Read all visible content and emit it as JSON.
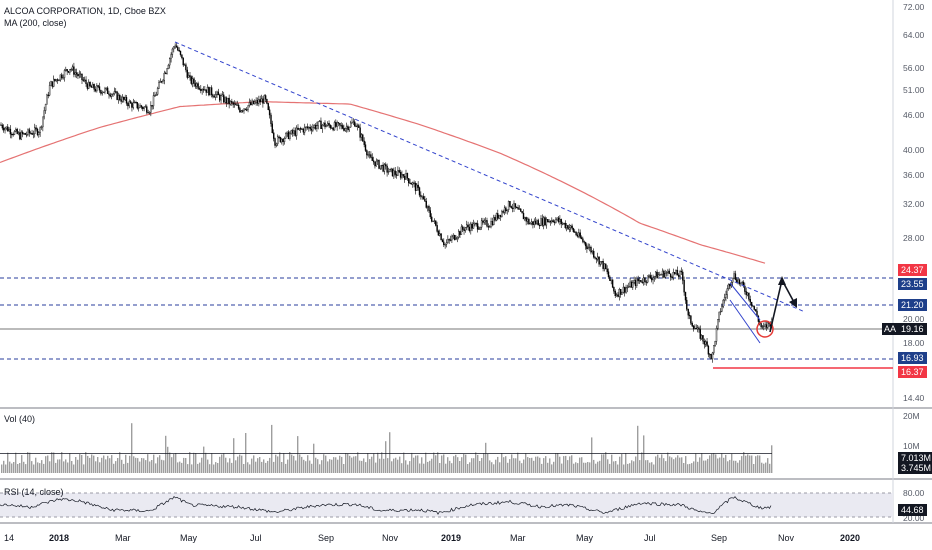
{
  "header": {
    "title": "ALCOA CORPORATION, 1D, Cboe BZX",
    "ma_label": "MA (200, close)"
  },
  "volume_pane": {
    "label": "Vol (40)"
  },
  "rsi_pane": {
    "label": "RSI (14, close)"
  },
  "price_tags": {
    "level_24_37": "24.37",
    "level_23_55": "23.55",
    "level_21_20": "21.20",
    "symbol": "AA",
    "last": "19.16",
    "level_16_93": "16.93",
    "level_16_37": "16.37"
  },
  "volume_tags": {
    "ma": "7.013M",
    "last": "3.745M"
  },
  "rsi_tag": {
    "value": "44.68"
  },
  "colors": {
    "candle": "#000000",
    "ma_line": "#e57373",
    "trendline": "#3344cc",
    "level_line": "#2a3e9c",
    "red_tag": "#f23645",
    "blue_tag": "#1e3f8a",
    "last_tag": "#131722",
    "circle": "#e53935",
    "volume_bars": "#9e9e9e"
  },
  "chart_data": {
    "type": "candlestick",
    "symbol": "AA",
    "interval": "1D",
    "exchange": "Cboe BZX",
    "price_axis_ticks": [
      "72.00",
      "64.00",
      "56.00",
      "51.00",
      "46.00",
      "40.00",
      "36.00",
      "32.00",
      "28.00",
      "20.00",
      "18.00",
      "14.40"
    ],
    "volume_axis_ticks": [
      "20M",
      "10M"
    ],
    "rsi_axis_ticks": [
      "80.00",
      "20.00"
    ],
    "x_ticks": [
      "14",
      "2018",
      "Mar",
      "May",
      "Jul",
      "Sep",
      "Nov",
      "2019",
      "Mar",
      "May",
      "Jul",
      "Sep",
      "Nov",
      "2020"
    ],
    "log_scale": true,
    "horizontal_levels": [
      24.37,
      23.55,
      21.2,
      16.93,
      16.37
    ],
    "last_close": 19.16,
    "close_anchors": [
      [
        0,
        44.0
      ],
      [
        20,
        42.0
      ],
      [
        40,
        43.0
      ],
      [
        50,
        52.0
      ],
      [
        70,
        56.0
      ],
      [
        90,
        51.5
      ],
      [
        110,
        50.5
      ],
      [
        130,
        48.0
      ],
      [
        150,
        47.0
      ],
      [
        165,
        55.0
      ],
      [
        175,
        62.0
      ],
      [
        190,
        53.0
      ],
      [
        215,
        50.0
      ],
      [
        240,
        47.0
      ],
      [
        265,
        49.0
      ],
      [
        275,
        41.0
      ],
      [
        300,
        43.0
      ],
      [
        320,
        44.0
      ],
      [
        345,
        43.5
      ],
      [
        355,
        44.5
      ],
      [
        370,
        38.0
      ],
      [
        390,
        36.0
      ],
      [
        405,
        35.5
      ],
      [
        420,
        33.0
      ],
      [
        430,
        30.0
      ],
      [
        445,
        26.5
      ],
      [
        465,
        28.5
      ],
      [
        490,
        29.0
      ],
      [
        510,
        31.5
      ],
      [
        530,
        29.0
      ],
      [
        555,
        29.5
      ],
      [
        570,
        28.5
      ],
      [
        590,
        26.0
      ],
      [
        605,
        24.0
      ],
      [
        615,
        21.5
      ],
      [
        640,
        22.8
      ],
      [
        665,
        23.5
      ],
      [
        682,
        23.3
      ],
      [
        688,
        19.5
      ],
      [
        705,
        17.5
      ],
      [
        712,
        16.4
      ],
      [
        720,
        20.0
      ],
      [
        733,
        23.4
      ],
      [
        748,
        21.5
      ],
      [
        762,
        18.5
      ],
      [
        772,
        19.16
      ]
    ],
    "ma200_anchors": [
      [
        0,
        37.5
      ],
      [
        100,
        43.5
      ],
      [
        180,
        47.5
      ],
      [
        260,
        48.5
      ],
      [
        350,
        48.0
      ],
      [
        420,
        44.0
      ],
      [
        500,
        39.0
      ],
      [
        570,
        34.0
      ],
      [
        640,
        29.0
      ],
      [
        700,
        26.5
      ],
      [
        765,
        24.5
      ]
    ],
    "rsi_anchors": [
      [
        0,
        52
      ],
      [
        30,
        45
      ],
      [
        60,
        65
      ],
      [
        80,
        60
      ],
      [
        110,
        38
      ],
      [
        150,
        35
      ],
      [
        175,
        70
      ],
      [
        190,
        50
      ],
      [
        240,
        45
      ],
      [
        275,
        32
      ],
      [
        320,
        50
      ],
      [
        355,
        52
      ],
      [
        380,
        36
      ],
      [
        420,
        38
      ],
      [
        440,
        30
      ],
      [
        470,
        50
      ],
      [
        510,
        58
      ],
      [
        540,
        46
      ],
      [
        570,
        50
      ],
      [
        605,
        30
      ],
      [
        640,
        55
      ],
      [
        682,
        50
      ],
      [
        700,
        32
      ],
      [
        712,
        29
      ],
      [
        733,
        70
      ],
      [
        760,
        43
      ],
      [
        772,
        44.68
      ]
    ],
    "volume_ma": 7013000,
    "volume_last": 3745000
  }
}
